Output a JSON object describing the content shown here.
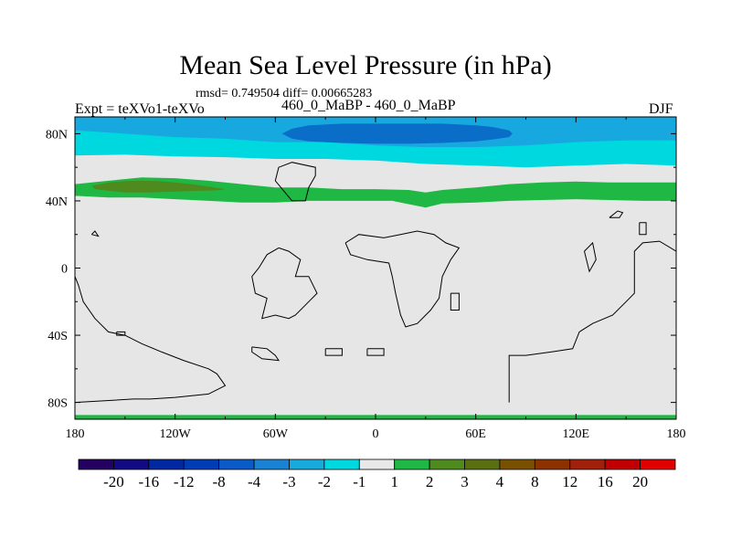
{
  "title": "Mean Sea Level Pressure (in hPa)",
  "stats_line": "rmsd= 0.749504 diff= 0.00665283",
  "expt_label": "Expt = teXVo1-teXVo",
  "runs_label": "460_0_MaBP - 460_0_MaBP",
  "season_label": "DJF",
  "chart_data": {
    "type": "heatmap",
    "title": "Mean Sea Level Pressure (in hPa)",
    "x_axis": {
      "range": [
        -180,
        180
      ],
      "ticks": [
        -180,
        -120,
        -60,
        0,
        60,
        120,
        180
      ],
      "tick_labels": [
        "180",
        "120W",
        "60W",
        "0",
        "60E",
        "120E",
        "180"
      ]
    },
    "y_axis": {
      "range": [
        -90,
        90
      ],
      "ticks": [
        80,
        40,
        0,
        -40,
        -80
      ],
      "tick_labels": [
        "80N",
        "40N",
        "0",
        "40S",
        "80S"
      ]
    },
    "background_value_range": [
      -1,
      1
    ],
    "anomaly_regions": [
      {
        "name": "north-polar-cyan",
        "class_range": [
          -2,
          -1
        ],
        "color": "#00d8e0",
        "outline_lon": [
          -180,
          -150,
          -120,
          -90,
          -60,
          -30,
          0,
          30,
          60,
          90,
          120,
          150,
          180,
          180,
          -180
        ],
        "outline_lat": [
          67,
          67.5,
          66.5,
          66,
          65,
          65,
          64,
          62,
          61,
          60,
          61,
          62,
          61,
          90,
          90
        ]
      },
      {
        "name": "north-polar-light-blue",
        "class_range": [
          -3,
          -2
        ],
        "color": "#18a8e0",
        "outline_lon": [
          -180,
          -150,
          -120,
          -90,
          -60,
          -30,
          0,
          30,
          60,
          90,
          120,
          150,
          180,
          180,
          -180
        ],
        "outline_lat": [
          82,
          80,
          78,
          77,
          75,
          75,
          73,
          72,
          72,
          73,
          75,
          76,
          76,
          90,
          90
        ]
      },
      {
        "name": "north-polar-blue",
        "class_range": [
          -4,
          -3
        ],
        "color": "#0a6ec8",
        "outline_lon": [
          -56,
          -50,
          -40,
          -20,
          0,
          20,
          40,
          60,
          70,
          80,
          82,
          80,
          70,
          60,
          40,
          20,
          0,
          -20,
          -40,
          -50
        ],
        "outline_lat": [
          80,
          83,
          85,
          86,
          86,
          86,
          86,
          85,
          84,
          82,
          80,
          78,
          76.5,
          75.5,
          74.5,
          74,
          74,
          74.5,
          75.5,
          77
        ]
      },
      {
        "name": "midlatitude-green-belt",
        "class_range": [
          1,
          2
        ],
        "color": "#20b844",
        "outline_lon": [
          -180,
          -160,
          -140,
          -120,
          -100,
          -80,
          -60,
          -40,
          -20,
          0,
          20,
          30,
          40,
          60,
          80,
          100,
          120,
          140,
          160,
          180,
          180,
          160,
          140,
          120,
          100,
          80,
          60,
          40,
          30,
          20,
          10,
          0,
          -20,
          -40,
          -60,
          -80,
          -100,
          -120,
          -140,
          -160,
          -180
        ],
        "outline_lat": [
          50,
          52,
          54,
          53.5,
          52,
          50,
          48,
          48,
          47,
          47,
          46.5,
          45,
          46.5,
          48,
          50,
          51,
          51.5,
          51,
          51,
          51,
          40,
          40,
          40.5,
          41,
          40.5,
          40,
          39,
          38.5,
          36,
          38,
          40,
          40,
          40,
          40,
          39,
          39,
          40,
          41,
          42,
          42,
          43
        ]
      },
      {
        "name": "north-pacific-olive",
        "class_range": [
          2,
          3
        ],
        "color": "#4e8a1e",
        "outline_lon": [
          -170,
          -160,
          -150,
          -140,
          -130,
          -120,
          -110,
          -100,
          -90,
          -95,
          -105,
          -120,
          -135,
          -150,
          -160,
          -168
        ],
        "outline_lat": [
          49,
          51,
          51.8,
          52,
          51.8,
          51,
          50,
          48.5,
          47,
          46.3,
          46,
          45.5,
          45,
          45,
          46,
          47
        ]
      },
      {
        "name": "south-polar-green-strip",
        "class_range": [
          1,
          2
        ],
        "color": "#20b844",
        "outline_lon": [
          -180,
          180,
          180,
          -180
        ],
        "outline_lat": [
          -87.5,
          -87.5,
          -90,
          -90
        ]
      }
    ],
    "colorbar": {
      "labels": [
        "-20",
        "-16",
        "-12",
        "-8",
        "-4",
        "-3",
        "-2",
        "-1",
        "1",
        "2",
        "3",
        "4",
        "8",
        "12",
        "16",
        "20"
      ],
      "colors": [
        "#240060",
        "#120a82",
        "#0028a0",
        "#003cb4",
        "#0a5ac8",
        "#1a82d2",
        "#18aadc",
        "#00d8e0",
        "#e8e8e8",
        "#20b844",
        "#4e8a1e",
        "#5a7010",
        "#785000",
        "#8c3200",
        "#a0200a",
        "#c00000",
        "#e00000"
      ]
    },
    "coastlines_lonlat": [
      [
        [
          -50,
          40
        ],
        [
          -42,
          40
        ],
        [
          -40,
          48
        ],
        [
          -36,
          55
        ],
        [
          -36,
          60
        ],
        [
          -50,
          63
        ],
        [
          -58,
          60
        ],
        [
          -60,
          52
        ],
        [
          -55,
          46
        ],
        [
          -50,
          40
        ]
      ],
      [
        [
          -180,
          -5
        ],
        [
          -178,
          -10
        ],
        [
          -175,
          -20
        ],
        [
          -168,
          -30
        ],
        [
          -160,
          -38
        ],
        [
          -150,
          -40
        ],
        [
          -140,
          -45
        ],
        [
          -128,
          -50
        ],
        [
          -115,
          -55
        ],
        [
          -100,
          -60
        ],
        [
          -95,
          -63
        ],
        [
          -90,
          -70
        ],
        [
          -100,
          -75
        ],
        [
          -120,
          -77
        ],
        [
          -135,
          -78
        ],
        [
          -145,
          -78
        ],
        [
          -180,
          -80
        ]
      ],
      [
        [
          -155,
          -38
        ],
        [
          -150,
          -38
        ],
        [
          -150,
          -40
        ],
        [
          -155,
          -40
        ],
        [
          -155,
          -38
        ]
      ],
      [
        [
          -58,
          12
        ],
        [
          -52,
          10
        ],
        [
          -45,
          5
        ],
        [
          -48,
          -5
        ],
        [
          -40,
          -5
        ],
        [
          -35,
          -15
        ],
        [
          -40,
          -20
        ],
        [
          -48,
          -28
        ],
        [
          -52,
          -30
        ],
        [
          -60,
          -28
        ],
        [
          -68,
          -30
        ],
        [
          -65,
          -18
        ],
        [
          -72,
          -15
        ],
        [
          -74,
          -5
        ],
        [
          -70,
          0
        ],
        [
          -65,
          8
        ],
        [
          -58,
          12
        ]
      ],
      [
        [
          -74,
          -47
        ],
        [
          -65,
          -48
        ],
        [
          -60,
          -52
        ],
        [
          -58,
          -55
        ],
        [
          -68,
          -54
        ],
        [
          -74,
          -50
        ],
        [
          -74,
          -47
        ]
      ],
      [
        [
          -18,
          15
        ],
        [
          -10,
          20
        ],
        [
          5,
          18
        ],
        [
          15,
          20
        ],
        [
          25,
          22
        ],
        [
          35,
          20
        ],
        [
          42,
          15
        ],
        [
          50,
          12
        ],
        [
          45,
          5
        ],
        [
          40,
          -5
        ],
        [
          38,
          -18
        ],
        [
          33,
          -25
        ],
        [
          25,
          -33
        ],
        [
          18,
          -35
        ],
        [
          15,
          -28
        ],
        [
          12,
          -15
        ],
        [
          10,
          -5
        ],
        [
          8,
          3
        ],
        [
          -5,
          5
        ],
        [
          -15,
          8
        ],
        [
          -18,
          15
        ]
      ],
      [
        [
          45,
          -15
        ],
        [
          50,
          -15
        ],
        [
          50,
          -25
        ],
        [
          45,
          -25
        ],
        [
          45,
          -15
        ]
      ],
      [
        [
          -30,
          -48
        ],
        [
          -20,
          -48
        ],
        [
          -20,
          -52
        ],
        [
          -30,
          -52
        ],
        [
          -30,
          -48
        ]
      ],
      [
        [
          -5,
          -48
        ],
        [
          5,
          -48
        ],
        [
          5,
          -52
        ],
        [
          -5,
          -52
        ],
        [
          -5,
          -48
        ]
      ],
      [
        [
          80,
          -80
        ],
        [
          80,
          -52
        ],
        [
          90,
          -52
        ],
        [
          105,
          -50
        ],
        [
          118,
          -48
        ],
        [
          122,
          -38
        ],
        [
          130,
          -33
        ],
        [
          142,
          -28
        ],
        [
          150,
          -20
        ],
        [
          155,
          -15
        ],
        [
          155,
          10
        ],
        [
          160,
          15
        ],
        [
          170,
          16
        ],
        [
          180,
          10
        ]
      ],
      [
        [
          125,
          10
        ],
        [
          130,
          15
        ],
        [
          132,
          5
        ],
        [
          128,
          -2
        ],
        [
          125,
          10
        ]
      ],
      [
        [
          140,
          30
        ],
        [
          145,
          34
        ],
        [
          148,
          33
        ],
        [
          146,
          30
        ],
        [
          140,
          30
        ]
      ],
      [
        [
          158,
          27
        ],
        [
          162,
          27
        ],
        [
          162,
          20
        ],
        [
          158,
          20
        ],
        [
          158,
          27
        ]
      ],
      [
        [
          -170,
          20
        ],
        [
          -168,
          22
        ],
        [
          -166,
          19
        ],
        [
          -170,
          20
        ]
      ]
    ]
  }
}
